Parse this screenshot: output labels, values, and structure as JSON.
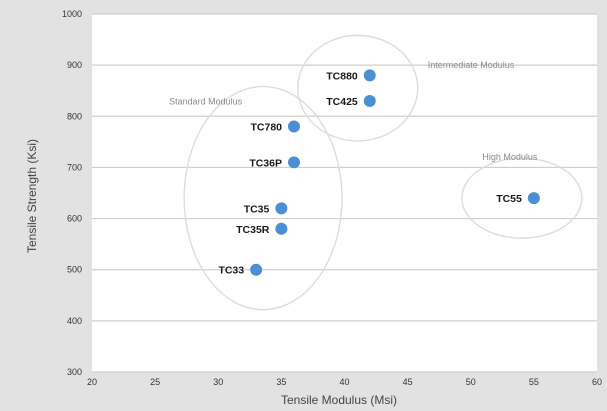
{
  "chart_data": {
    "type": "scatter",
    "title": "",
    "xlabel": "Tensile Modulus (Msi)",
    "ylabel": "Tensile Strength (Ksi)",
    "xlim": [
      20,
      60
    ],
    "ylim": [
      300,
      1000
    ],
    "xticks": [
      "20",
      "25",
      "30",
      "35",
      "40",
      "45",
      "50",
      "55",
      "60"
    ],
    "yticks": [
      "300",
      "400",
      "500",
      "600",
      "700",
      "800",
      "900",
      "1000"
    ],
    "grid": "horizontal",
    "marker_color": "#4a8fd4",
    "points": [
      {
        "label": "TC33",
        "x": 33,
        "y": 500
      },
      {
        "label": "TC35R",
        "x": 35,
        "y": 580
      },
      {
        "label": "TC35",
        "x": 35,
        "y": 620
      },
      {
        "label": "TC36P",
        "x": 36,
        "y": 710
      },
      {
        "label": "TC780",
        "x": 36,
        "y": 780
      },
      {
        "label": "TC425",
        "x": 42,
        "y": 830
      },
      {
        "label": "TC880",
        "x": 42,
        "y": 880
      },
      {
        "label": "TC55",
        "x": 55,
        "y": 640
      }
    ],
    "groups": [
      {
        "label": "Standard Modulus",
        "members": [
          "TC33",
          "TC35R",
          "TC35",
          "TC36P",
          "TC780"
        ]
      },
      {
        "label": "Intermediate Modulus",
        "members": [
          "TC425",
          "TC880"
        ]
      },
      {
        "label": "High Modulus",
        "members": [
          "TC55"
        ]
      }
    ]
  }
}
